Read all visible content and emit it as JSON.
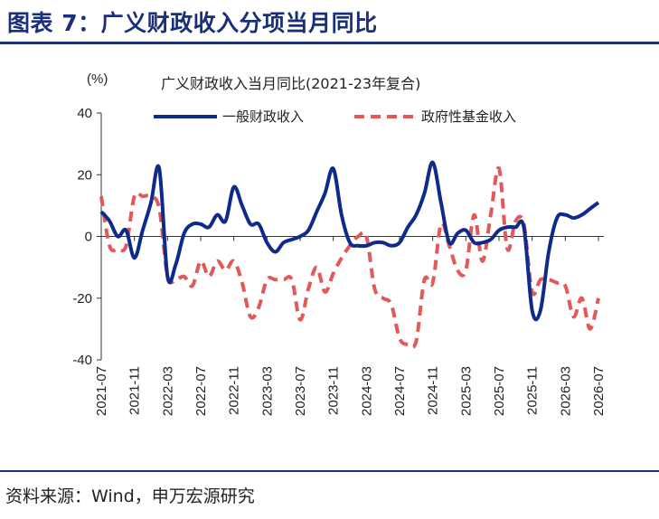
{
  "figure": {
    "title": "图表 7：广义财政收入分项当月同比",
    "source": "资料来源：Wind，申万宏源研究",
    "colors": {
      "header": "#1a2f7a",
      "series_general": "#0e2a8a",
      "series_fund": "#e05a5a"
    }
  },
  "chart_data": {
    "type": "line",
    "title": "广义财政收入当月同比(2021-23年复合)",
    "ylabel": "(%)",
    "xlabel": "",
    "ylim": [
      -40,
      40
    ],
    "yticks": [
      40,
      20,
      0,
      -20,
      -40
    ],
    "grid": false,
    "legend_position": "top",
    "x_labels": [
      "2021-07",
      "2021-11",
      "2022-03",
      "2022-07",
      "2022-11",
      "2023-03",
      "2023-07",
      "2023-11",
      "2024-03",
      "2024-07",
      "2024-11",
      "2025-03",
      "2025-07",
      "2025-11",
      "2026-03",
      "2026-07"
    ],
    "x": [
      "2021-07",
      "2021-08",
      "2021-09",
      "2021-10",
      "2021-11",
      "2021-12",
      "2022-01",
      "2022-02",
      "2022-03",
      "2022-04",
      "2022-05",
      "2022-06",
      "2022-07",
      "2022-08",
      "2022-09",
      "2022-10",
      "2022-11",
      "2022-12",
      "2023-01",
      "2023-02",
      "2023-03",
      "2023-04",
      "2023-05",
      "2023-06",
      "2023-07",
      "2023-08",
      "2023-09",
      "2023-10",
      "2023-11",
      "2023-12",
      "2024-01",
      "2024-02",
      "2024-03",
      "2024-04",
      "2024-05",
      "2024-06",
      "2024-07",
      "2024-08",
      "2024-09",
      "2024-10",
      "2024-11",
      "2024-12",
      "2025-01",
      "2025-02",
      "2025-03",
      "2025-04",
      "2025-05",
      "2025-06",
      "2025-07",
      "2025-08",
      "2025-09",
      "2025-10",
      "2025-11",
      "2025-12",
      "2026-01",
      "2026-02",
      "2026-03",
      "2026-04",
      "2026-05",
      "2026-06",
      "2026-07"
    ],
    "series": [
      {
        "name": "一般财政收入",
        "color": "#0e2a8a",
        "style": "solid",
        "values": [
          8,
          5,
          0,
          2,
          -7,
          2,
          11,
          22,
          -13,
          -9,
          1,
          4,
          4,
          3,
          7,
          5,
          16,
          10,
          4,
          4,
          -2,
          -5,
          -2,
          -1,
          0,
          2,
          8,
          14,
          22,
          7,
          -2,
          -3,
          -3,
          -2,
          -2,
          -3,
          -2,
          3,
          7,
          14,
          24,
          11,
          -2,
          1,
          2,
          -2,
          -2,
          -1,
          2,
          3,
          3,
          3,
          -24,
          -24,
          -5,
          6,
          7,
          6,
          7,
          9,
          11
        ]
      },
      {
        "name": "政府性基金收入",
        "color": "#e05a5a",
        "style": "dashed",
        "values": [
          13,
          -3,
          -4,
          -3,
          13,
          13,
          13,
          9,
          -13,
          -14,
          -13,
          -16,
          -8,
          -13,
          -8,
          -11,
          -8,
          -15,
          -26,
          -23,
          -14,
          -14,
          -14,
          -14,
          -27,
          -17,
          -10,
          -18,
          -12,
          -7,
          -3,
          0,
          0,
          -17,
          -20,
          -22,
          -33,
          -35,
          -34,
          -14,
          -15,
          4,
          -3,
          -11,
          -11,
          7,
          -8,
          7,
          22,
          -4,
          5,
          4,
          -18,
          -14,
          -14,
          -15,
          -16,
          -26,
          -20,
          -30,
          -20
        ]
      }
    ]
  }
}
